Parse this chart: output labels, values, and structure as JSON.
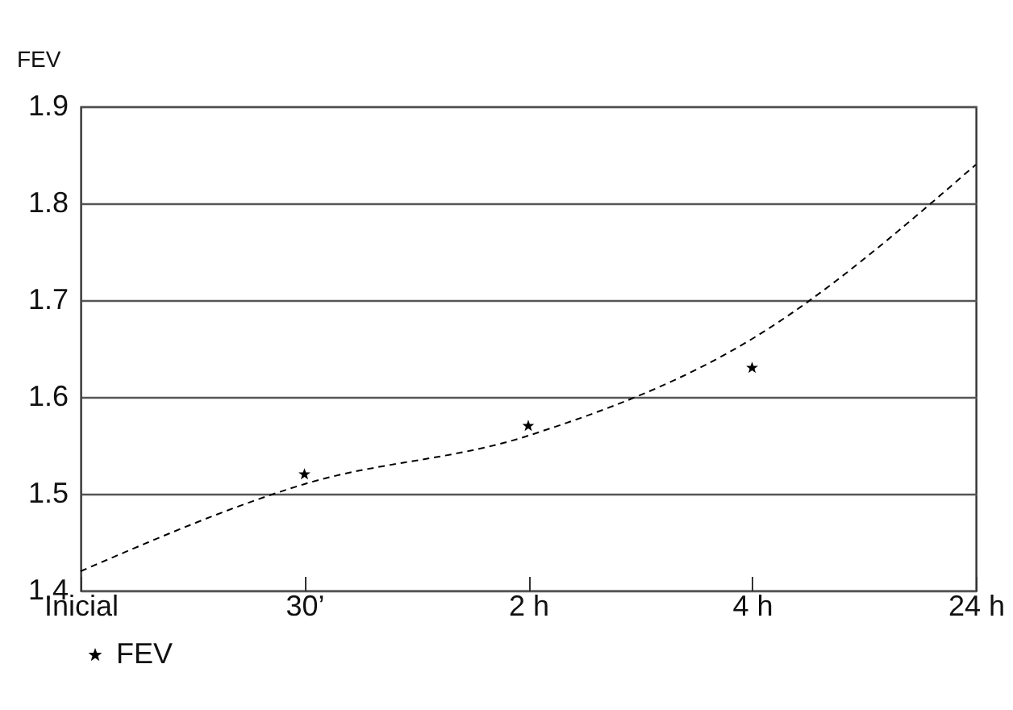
{
  "chart_data": {
    "type": "line",
    "ylabel": "FEV",
    "categories": [
      "Inicial",
      "30’",
      "2 h",
      "4 h",
      "24 h"
    ],
    "ylim": [
      1.4,
      1.9
    ],
    "yticks": [
      1.4,
      1.5,
      1.6,
      1.7,
      1.8,
      1.9
    ],
    "grid": "y",
    "legend": "bottom",
    "series": [
      {
        "type": "line",
        "color": "#000000",
        "line_style": "dashed",
        "values": [
          1.42,
          1.51,
          1.56,
          1.66,
          1.84
        ]
      },
      {
        "type": "scatter",
        "name": "FEV",
        "color": "#000000",
        "marker": "star",
        "x": [
          "30’",
          "2 h",
          "4 h"
        ],
        "values": [
          1.52,
          1.57,
          1.63
        ]
      }
    ]
  }
}
